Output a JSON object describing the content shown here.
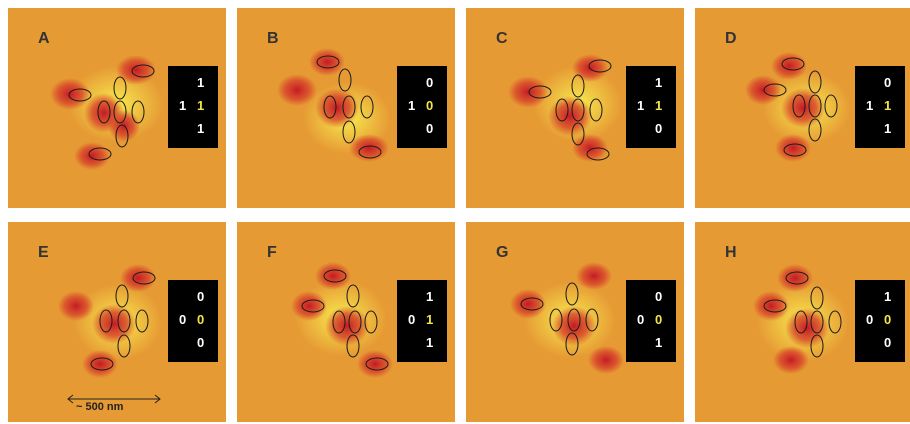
{
  "panels": [
    {
      "label": "A",
      "code": {
        "top": "1",
        "left": "1",
        "mid": "1",
        "bottom": "1"
      }
    },
    {
      "label": "B",
      "code": {
        "top": "0",
        "left": "1",
        "mid": "0",
        "bottom": "0"
      }
    },
    {
      "label": "C",
      "code": {
        "top": "1",
        "left": "1",
        "mid": "1",
        "bottom": "0"
      }
    },
    {
      "label": "D",
      "code": {
        "top": "0",
        "left": "1",
        "mid": "1",
        "bottom": "1"
      }
    },
    {
      "label": "E",
      "code": {
        "top": "0",
        "left": "0",
        "mid": "0",
        "bottom": "0"
      }
    },
    {
      "label": "F",
      "code": {
        "top": "1",
        "left": "0",
        "mid": "1",
        "bottom": "1"
      }
    },
    {
      "label": "G",
      "code": {
        "top": "0",
        "left": "0",
        "mid": "0",
        "bottom": "1"
      }
    },
    {
      "label": "H",
      "code": {
        "top": "1",
        "left": "0",
        "mid": "0",
        "bottom": "0"
      }
    }
  ],
  "scale_bar": {
    "label": "~ 500 nm"
  },
  "colors": {
    "background": "#e69a34",
    "blob": "#c8202a",
    "glow": "#f6e84a",
    "highlight_digit": "#f1e64b"
  }
}
